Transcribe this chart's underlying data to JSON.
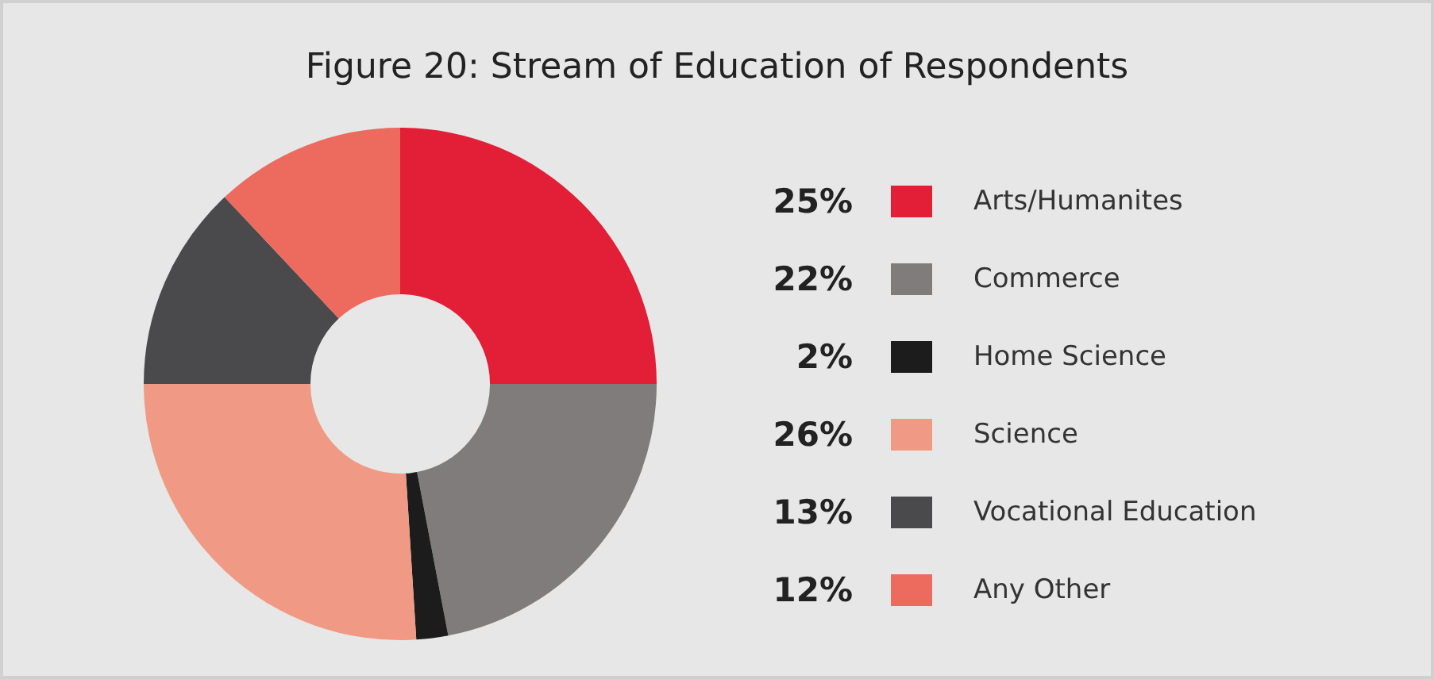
{
  "chart_data": {
    "type": "donut",
    "title": "Figure 20: Stream of Education of Respondents",
    "categories": [
      "Arts/Humanites",
      "Commerce",
      "Home Science",
      "Science",
      "Vocational Education",
      "Any Other"
    ],
    "values": [
      25,
      22,
      2,
      26,
      13,
      12
    ],
    "colors": [
      "#e31e37",
      "#807c7c",
      "#1c1c1c",
      "#f09a85",
      "#4a494c",
      "#ec6a5e"
    ],
    "value_labels": [
      "25%",
      "22%",
      "2%",
      "26%",
      "13%",
      "12%"
    ],
    "legend": "right"
  }
}
